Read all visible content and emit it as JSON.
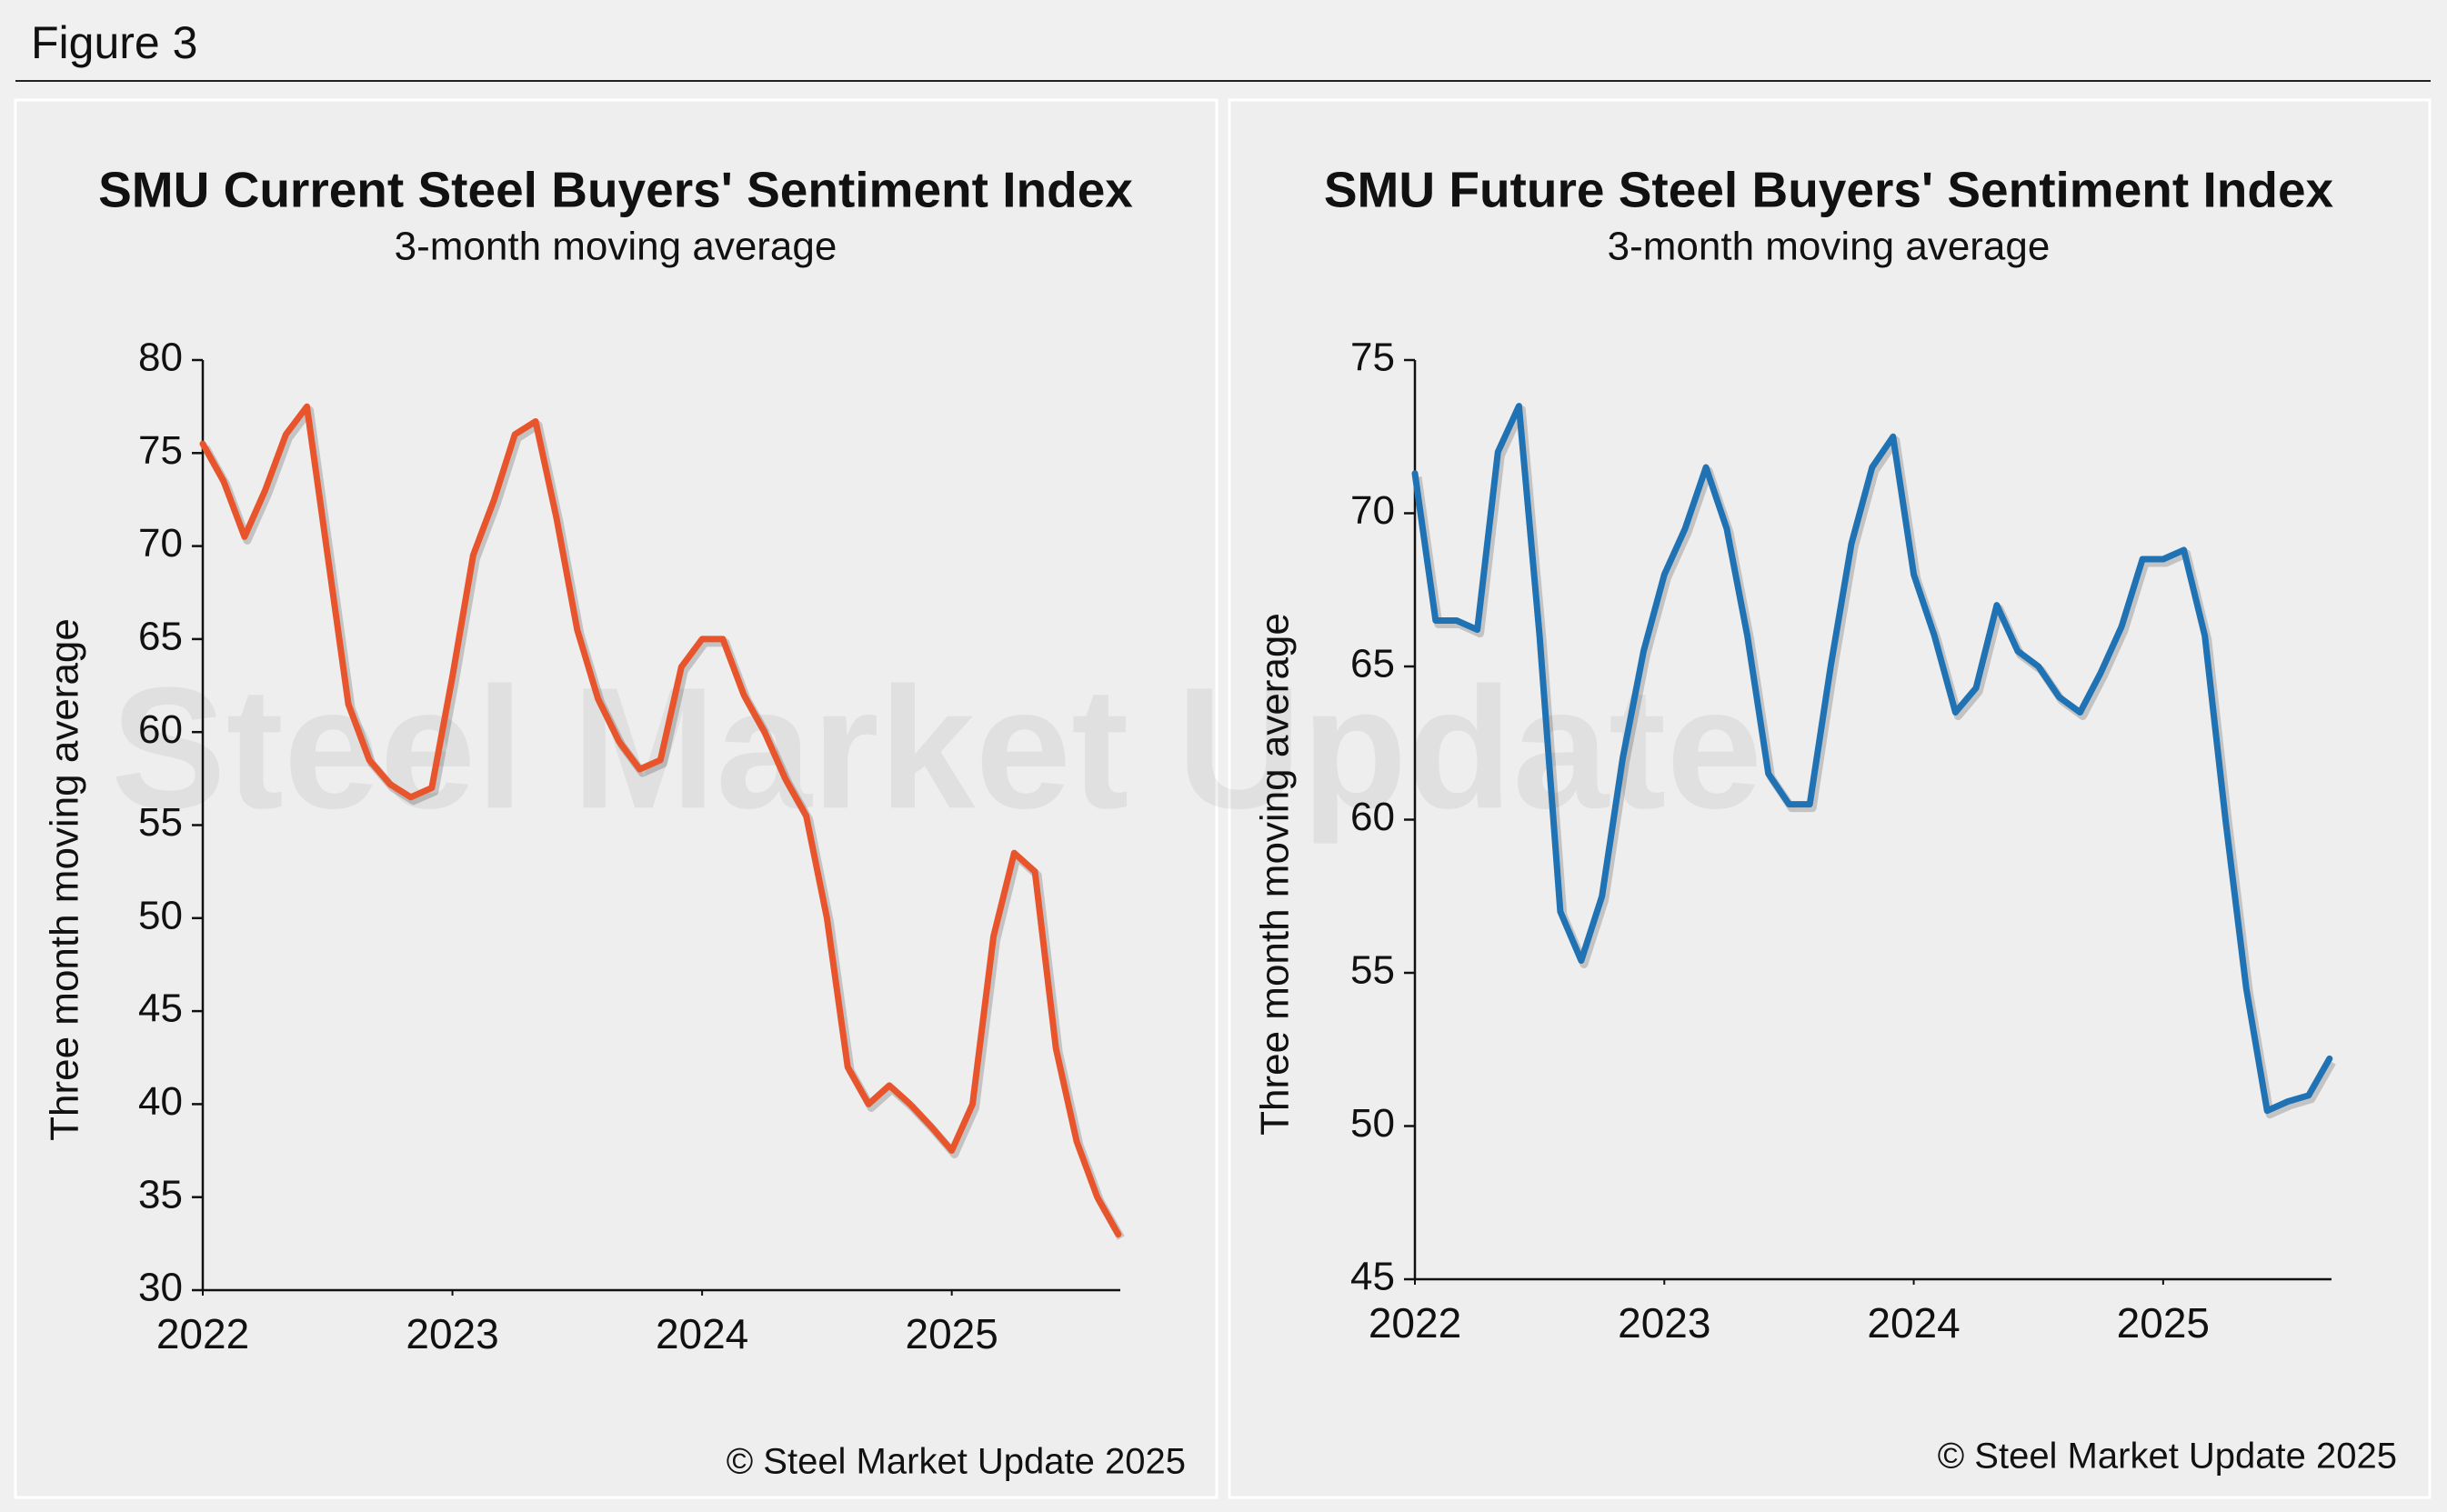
{
  "figure_label": "Figure 3",
  "watermark": "Steel Market Update",
  "chart_data": [
    {
      "type": "line",
      "title": "SMU Current Steel Buyers' Sentiment Index",
      "subtitle": "3-month moving average",
      "y_label": "Three month moving average",
      "credit": "© Steel Market Update 2025",
      "color": "#e8552c",
      "x": [
        2022,
        2022.083,
        2022.167,
        2022.25,
        2022.333,
        2022.417,
        2022.5,
        2022.583,
        2022.667,
        2022.75,
        2022.833,
        2022.917,
        2023,
        2023.083,
        2023.167,
        2023.25,
        2023.333,
        2023.417,
        2023.5,
        2023.583,
        2023.667,
        2023.75,
        2023.833,
        2023.917,
        2024,
        2024.083,
        2024.167,
        2024.25,
        2024.333,
        2024.417,
        2024.5,
        2024.583,
        2024.667,
        2024.75,
        2024.833,
        2024.917,
        2025,
        2025.083,
        2025.167,
        2025.25,
        2025.333,
        2025.417,
        2025.5,
        2025.583,
        2025.667
      ],
      "values": [
        75.5,
        73.5,
        70.5,
        73,
        76,
        77.5,
        69.5,
        61.5,
        58.5,
        57.2,
        56.5,
        57,
        63,
        69.5,
        72.5,
        76,
        76.7,
        71.5,
        65.5,
        61.8,
        59.5,
        58,
        58.5,
        63.5,
        65,
        65,
        62,
        60,
        57.5,
        55.5,
        50,
        42,
        40,
        41,
        40,
        38.8,
        37.5,
        40,
        49,
        53.5,
        52.5,
        43,
        38,
        35,
        33
      ],
      "xlim": [
        2022,
        2025.675
      ],
      "xticks": [
        2022,
        2023,
        2024,
        2025
      ],
      "ylim": [
        30,
        80
      ],
      "yticks": [
        30,
        35,
        40,
        45,
        50,
        55,
        60,
        65,
        70,
        75,
        80
      ]
    },
    {
      "type": "line",
      "title": "SMU Future Steel Buyers' Sentiment Index",
      "subtitle": "3-month moving average",
      "y_label": "Three month moving average",
      "credit": "© Steel Market Update 2025",
      "color": "#1f72b3",
      "x": [
        2022,
        2022.083,
        2022.167,
        2022.25,
        2022.333,
        2022.417,
        2022.5,
        2022.583,
        2022.667,
        2022.75,
        2022.833,
        2022.917,
        2023,
        2023.083,
        2023.167,
        2023.25,
        2023.333,
        2023.417,
        2023.5,
        2023.583,
        2023.667,
        2023.75,
        2023.833,
        2023.917,
        2024,
        2024.083,
        2024.167,
        2024.25,
        2024.333,
        2024.417,
        2024.5,
        2024.583,
        2024.667,
        2024.75,
        2024.833,
        2024.917,
        2025,
        2025.083,
        2025.167,
        2025.25,
        2025.333,
        2025.417,
        2025.5,
        2025.583,
        2025.667
      ],
      "values": [
        71.3,
        66.5,
        66.5,
        66.2,
        72,
        73.5,
        66,
        57,
        55.4,
        57.5,
        62,
        65.5,
        68,
        69.5,
        71.5,
        69.5,
        66,
        61.5,
        60.5,
        60.5,
        65,
        69,
        71.5,
        72.5,
        68,
        66,
        63.5,
        64.3,
        67,
        65.5,
        65,
        64,
        63.5,
        64.8,
        66.3,
        68.5,
        68.5,
        68.8,
        66,
        60,
        54.5,
        50.5,
        50.8,
        51,
        52.2
      ],
      "xlim": [
        2022,
        2025.675
      ],
      "xticks": [
        2022,
        2023,
        2024,
        2025
      ],
      "ylim": [
        45,
        75
      ],
      "yticks": [
        45,
        50,
        55,
        60,
        65,
        70,
        75
      ]
    }
  ]
}
